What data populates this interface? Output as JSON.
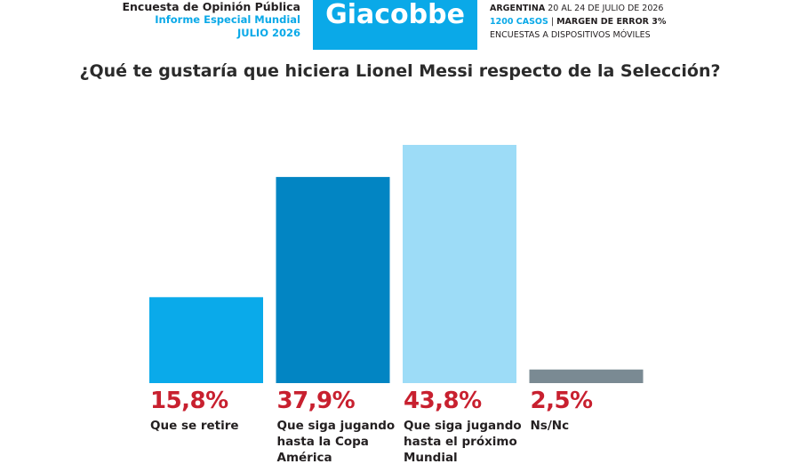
{
  "header": {
    "left_line1": "Encuesta de Opinión Pública",
    "left_line2": "Informe Especial Mundial",
    "left_line3": "JULIO 2026",
    "brand": "Giacobbe",
    "right_line1_strong": "ARGENTINA",
    "right_line1_rest": " 20 AL 24 DE JULIO DE 2026",
    "right_line2_accent": "1200 CASOS",
    "right_line2_sep": " | ",
    "right_line2_strong": "MARGEN DE ERROR 3%",
    "right_line3": "ENCUESTAS A DISPOSITIVOS MÓVILES"
  },
  "colors": {
    "brand_bg": "#0aa9e8",
    "accent_blue": "#0aa9e8",
    "percent_red": "#c8202f",
    "bar_colors": [
      "#0aaaea",
      "#0285c3",
      "#9ddcf7",
      "#7a8a93"
    ]
  },
  "chart_data": {
    "type": "bar",
    "title": "¿Qué te gustaría que hiciera Lionel Messi respecto de la Selección?",
    "categories": [
      "Que se retire",
      "Que siga jugando hasta la Copa América",
      "Que siga jugando hasta el próximo Mundial",
      "Ns/Nc"
    ],
    "values": [
      15.8,
      37.9,
      43.8,
      2.5
    ],
    "value_labels": [
      "15,8%",
      "37,9%",
      "43,8%",
      "2,5%"
    ],
    "ylim": [
      0,
      43.8
    ],
    "grid": false,
    "legend": "none"
  }
}
